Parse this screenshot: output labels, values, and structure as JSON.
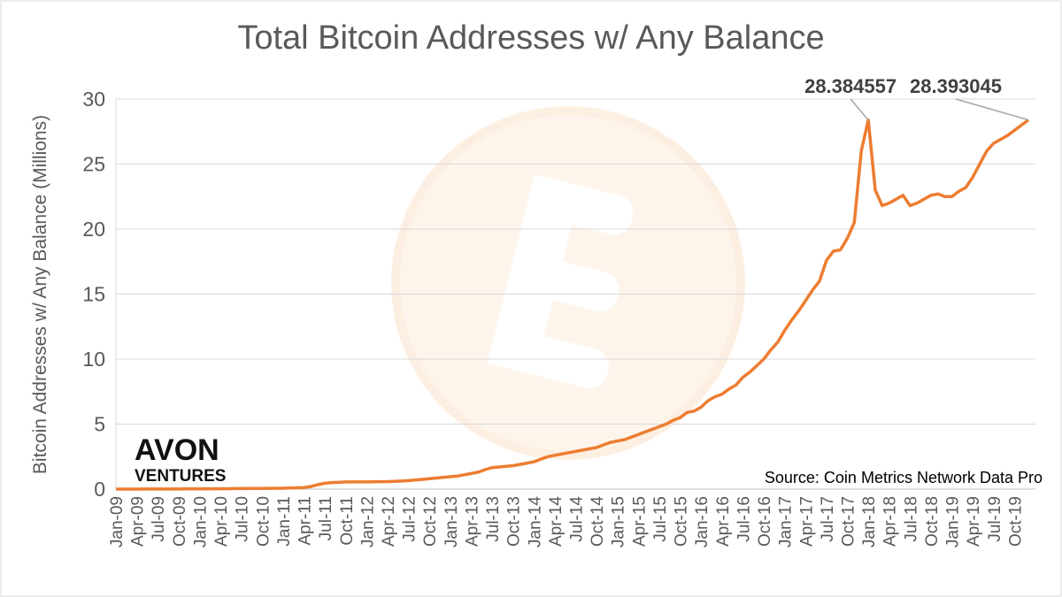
{
  "chart_data": {
    "type": "line",
    "title": "Total Bitcoin Addresses w/ Any Balance",
    "y_label": "Bitcoin Addresses w/ Any Balance (Millions)",
    "source": "Source: Coin Metrics Network Data Pro",
    "logo": [
      "AVON",
      "VENTURES"
    ],
    "categories": [
      "Jan-09",
      null,
      null,
      "Apr-09",
      null,
      null,
      "Jul-09",
      null,
      null,
      "Oct-09",
      null,
      null,
      "Jan-10",
      null,
      null,
      "Apr-10",
      null,
      null,
      "Jul-10",
      null,
      null,
      "Oct-10",
      null,
      null,
      "Jan-11",
      null,
      null,
      "Apr-11",
      null,
      null,
      "Jul-11",
      null,
      null,
      "Oct-11",
      null,
      null,
      "Jan-12",
      null,
      null,
      "Apr-12",
      null,
      null,
      "Jul-12",
      null,
      null,
      "Oct-12",
      null,
      null,
      "Jan-13",
      null,
      null,
      "Apr-13",
      null,
      null,
      "Jul-13",
      null,
      null,
      "Oct-13",
      null,
      null,
      "Jan-14",
      null,
      null,
      "Apr-14",
      null,
      null,
      "Jul-14",
      null,
      null,
      "Oct-14",
      null,
      null,
      "Jan-15",
      null,
      null,
      "Apr-15",
      null,
      null,
      "Jul-15",
      null,
      null,
      "Oct-15",
      null,
      null,
      "Jan-16",
      null,
      null,
      "Apr-16",
      null,
      null,
      "Jul-16",
      null,
      null,
      "Oct-16",
      null,
      null,
      "Jan-17",
      null,
      null,
      "Apr-17",
      null,
      null,
      "Jul-17",
      null,
      null,
      "Oct-17",
      null,
      null,
      "Jan-18",
      null,
      null,
      "Apr-18",
      null,
      null,
      "Jul-18",
      null,
      null,
      "Oct-18",
      null,
      null,
      "Jan-19",
      null,
      null,
      "Apr-19",
      null,
      null,
      "Jul-19",
      null,
      null,
      "Oct-19",
      null,
      null
    ],
    "series": [
      {
        "name": "Total Bitcoin Addresses",
        "color": "#ed7d31",
        "values": [
          0,
          0,
          0,
          0,
          0.01,
          0.01,
          0.01,
          0.01,
          0.01,
          0.01,
          0.02,
          0.02,
          0.02,
          0.02,
          0.03,
          0.03,
          0.03,
          0.04,
          0.04,
          0.05,
          0.05,
          0.05,
          0.06,
          0.06,
          0.07,
          0.08,
          0.1,
          0.12,
          0.2,
          0.35,
          0.45,
          0.5,
          0.52,
          0.55,
          0.55,
          0.55,
          0.55,
          0.56,
          0.57,
          0.58,
          0.6,
          0.62,
          0.65,
          0.7,
          0.75,
          0.8,
          0.85,
          0.9,
          0.95,
          1.0,
          1.1,
          1.2,
          1.3,
          1.5,
          1.65,
          1.7,
          1.75,
          1.8,
          1.9,
          2.0,
          2.1,
          2.3,
          2.5,
          2.6,
          2.7,
          2.8,
          2.9,
          3.0,
          3.1,
          3.2,
          3.4,
          3.6,
          3.7,
          3.8,
          4.0,
          4.2,
          4.4,
          4.6,
          4.8,
          5.0,
          5.3,
          5.5,
          5.9,
          6.0,
          6.3,
          6.8,
          7.1,
          7.3,
          7.7,
          8.0,
          8.6,
          9.0,
          9.5,
          10.0,
          10.7,
          11.3,
          12.2,
          13.0,
          13.7,
          14.5,
          15.3,
          16.0,
          17.6,
          18.3,
          18.4,
          19.3,
          20.5,
          26.0,
          28.384557,
          23.0,
          21.8,
          22.0,
          22.3,
          22.6,
          21.8,
          22.0,
          22.3,
          22.6,
          22.7,
          22.5,
          22.5,
          22.9,
          23.2,
          24.0,
          25.0,
          26.0,
          26.6,
          26.9,
          27.2,
          27.6,
          28.0,
          28.393045
        ],
        "value_labels": [
          null,
          null,
          null,
          null,
          null,
          null,
          null,
          null,
          null,
          null,
          null,
          null,
          null,
          null,
          null,
          null,
          null,
          null,
          null,
          null,
          null,
          null,
          null,
          null,
          null,
          null,
          null,
          null,
          null,
          null,
          null,
          null,
          null,
          null,
          null,
          null,
          null,
          null,
          null,
          null,
          null,
          null,
          null,
          null,
          null,
          null,
          null,
          null,
          null,
          null,
          null,
          null,
          null,
          null,
          null,
          null,
          null,
          null,
          null,
          null,
          null,
          null,
          null,
          null,
          null,
          null,
          null,
          null,
          null,
          null,
          null,
          null,
          null,
          null,
          null,
          null,
          null,
          null,
          null,
          null,
          null,
          null,
          null,
          null,
          null,
          null,
          null,
          null,
          null,
          null,
          null,
          null,
          null,
          null,
          null,
          null,
          null,
          null,
          null,
          null,
          null,
          null,
          null,
          null,
          null,
          null,
          null,
          null,
          "28.384557",
          null,
          null,
          null,
          null,
          null,
          null,
          null,
          null,
          null,
          null,
          null,
          null,
          null,
          null,
          null,
          null,
          null,
          null,
          null,
          null,
          null,
          null,
          "28.393045"
        ]
      }
    ],
    "ylim": [
      0,
      30
    ],
    "yticks": [
      0,
      5,
      10,
      15,
      20,
      25,
      30
    ],
    "grid": true
  }
}
